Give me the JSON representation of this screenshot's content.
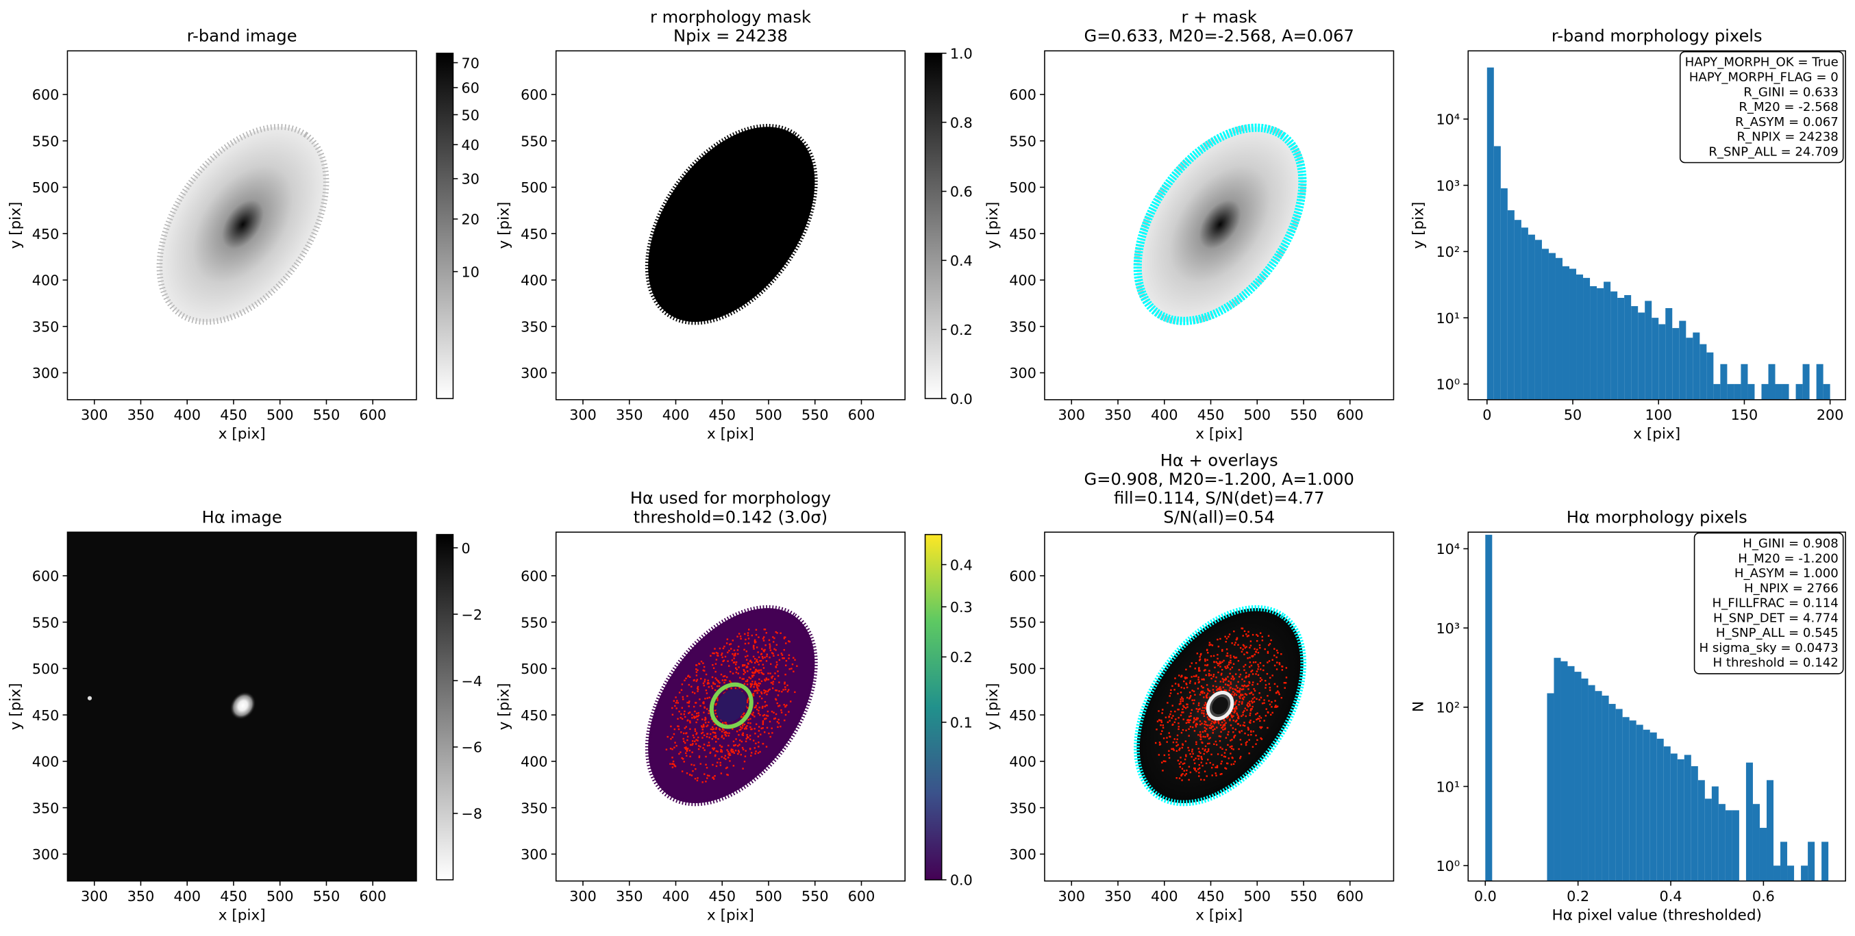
{
  "chart_data": [
    {
      "type": "image",
      "title": [
        "r-band image"
      ],
      "xlabel": "x [pix]",
      "ylabel": "y [pix]",
      "xlim": [
        271,
        647
      ],
      "ylim": [
        271,
        647
      ],
      "xticks": [
        300,
        350,
        400,
        450,
        500,
        550,
        600
      ],
      "yticks": [
        300,
        350,
        400,
        450,
        500,
        550,
        600
      ],
      "colorbar": {
        "cmap": "gray_r",
        "scale": "sqrt",
        "clim": [
          0,
          74
        ],
        "ticks": [
          10,
          20,
          30,
          40,
          50,
          60,
          70
        ]
      }
    },
    {
      "type": "image",
      "title": [
        "r morphology mask",
        "Npix = 24238"
      ],
      "xlabel": "x [pix]",
      "ylabel": "y [pix]",
      "xlim": [
        271,
        647
      ],
      "ylim": [
        271,
        647
      ],
      "xticks": [
        300,
        350,
        400,
        450,
        500,
        550,
        600
      ],
      "yticks": [
        300,
        350,
        400,
        450,
        500,
        550,
        600
      ],
      "colorbar": {
        "cmap": "gray_r",
        "scale": "linear",
        "clim": [
          0,
          1
        ],
        "ticks": [
          {
            "value": 0,
            "label": "0.0"
          },
          0.2,
          0.4,
          0.6,
          0.8,
          {
            "value": 1,
            "label": "1.0"
          }
        ]
      }
    },
    {
      "type": "image",
      "title": [
        "r + mask",
        "G=0.633, M20=-2.568, A=0.067"
      ],
      "xlabel": "x [pix]",
      "ylabel": "y [pix]",
      "xlim": [
        271,
        647
      ],
      "ylim": [
        271,
        647
      ],
      "xticks": [
        300,
        350,
        400,
        450,
        500,
        550,
        600
      ],
      "yticks": [
        300,
        350,
        400,
        450,
        500,
        550,
        600
      ]
    },
    {
      "type": "histogram",
      "title": [
        "r-band morphology pixels"
      ],
      "xlabel": "x [pix]",
      "ylabel": "y [pix]",
      "log_y": true,
      "color": "#1f77b4",
      "bins": [
        0,
        4,
        8,
        12,
        16,
        20,
        24,
        28,
        32,
        36,
        40,
        44,
        48,
        52,
        56,
        60,
        64,
        68,
        72,
        76,
        80,
        84,
        88,
        92,
        96,
        100,
        104,
        108,
        112,
        116,
        120,
        124,
        128,
        132,
        136,
        140,
        144,
        148,
        152,
        156,
        160,
        164,
        168,
        172,
        176,
        180,
        184,
        188,
        192,
        196,
        200
      ],
      "values": [
        60000,
        3900,
        900,
        420,
        300,
        230,
        180,
        150,
        110,
        95,
        80,
        60,
        55,
        45,
        40,
        30,
        28,
        35,
        25,
        20,
        22,
        15,
        12,
        18,
        10,
        8,
        14,
        7,
        9,
        5,
        6,
        4,
        3,
        1,
        2,
        1,
        1,
        2,
        1,
        0,
        1,
        2,
        1,
        1,
        0,
        1,
        2,
        0,
        2,
        1
      ],
      "xlim": [
        -11,
        209
      ],
      "ylim": [
        0.58,
        107000
      ],
      "xticks": [
        0,
        50,
        100,
        150,
        200
      ],
      "yticks": [
        {
          "value": 1,
          "label": "10⁰"
        },
        {
          "value": 10,
          "label": "10¹"
        },
        {
          "value": 100,
          "label": "10²"
        },
        {
          "value": 1000,
          "label": "10³"
        },
        {
          "value": 10000,
          "label": "10⁴"
        }
      ],
      "annotation": [
        "HAPY_MORPH_OK = True",
        "HAPY_MORPH_FLAG = 0",
        "R_GINI = 0.633",
        "R_M20 = -2.568",
        "R_ASYM = 0.067",
        "R_NPIX = 24238",
        "R_SNP_ALL = 24.709"
      ]
    },
    {
      "type": "image",
      "title": [
        "Hα image"
      ],
      "xlabel": "x [pix]",
      "ylabel": "y [pix]",
      "xlim": [
        271,
        647
      ],
      "ylim": [
        271,
        647
      ],
      "xticks": [
        300,
        350,
        400,
        450,
        500,
        550,
        600
      ],
      "yticks": [
        300,
        350,
        400,
        450,
        500,
        550,
        600
      ],
      "colorbar": {
        "cmap": "gray_r",
        "scale": "linear",
        "clim": [
          -10,
          0.4
        ],
        "ticks": [
          0,
          {
            "value": -2,
            "label": "−2"
          },
          {
            "value": -4,
            "label": "−4"
          },
          {
            "value": -6,
            "label": "−6"
          },
          {
            "value": -8,
            "label": "−8"
          }
        ]
      }
    },
    {
      "type": "image",
      "title": [
        "Hα used for morphology",
        "threshold=0.142 (3.0σ)"
      ],
      "xlabel": "x [pix]",
      "ylabel": "y [pix]",
      "xlim": [
        271,
        647
      ],
      "ylim": [
        271,
        647
      ],
      "xticks": [
        300,
        350,
        400,
        450,
        500,
        550,
        600
      ],
      "yticks": [
        300,
        350,
        400,
        450,
        500,
        550,
        600
      ],
      "colorbar": {
        "cmap": "viridis",
        "scale": "sqrt",
        "clim": [
          0,
          0.48
        ],
        "ticks": [
          {
            "value": 0,
            "label": "0.0"
          },
          0.1,
          0.2,
          0.3,
          0.4
        ]
      }
    },
    {
      "type": "image",
      "title": [
        "Hα + overlays",
        "G=0.908, M20=-1.200, A=1.000",
        "fill=0.114, S/N(det)=4.77",
        "S/N(all)=0.54"
      ],
      "xlabel": "x [pix]",
      "ylabel": "y [pix]",
      "xlim": [
        271,
        647
      ],
      "ylim": [
        271,
        647
      ],
      "xticks": [
        300,
        350,
        400,
        450,
        500,
        550,
        600
      ],
      "yticks": [
        300,
        350,
        400,
        450,
        500,
        550,
        600
      ]
    },
    {
      "type": "histogram",
      "title": [
        "Hα morphology pixels"
      ],
      "xlabel": "Hα pixel value (thresholded)",
      "ylabel": "N",
      "log_y": true,
      "color": "#1f77b4",
      "bins": [
        0,
        0.0148,
        0.0296,
        0.0444,
        0.0592,
        0.074,
        0.0888,
        0.1036,
        0.1184,
        0.1332,
        0.148,
        0.1628,
        0.1776,
        0.1924,
        0.2072,
        0.222,
        0.2368,
        0.2516,
        0.2664,
        0.2812,
        0.296,
        0.3108,
        0.3256,
        0.3404,
        0.3552,
        0.37,
        0.3848,
        0.3996,
        0.4144,
        0.4292,
        0.444,
        0.4588,
        0.4736,
        0.4884,
        0.5032,
        0.518,
        0.5328,
        0.5476,
        0.5624,
        0.5772,
        0.592,
        0.6068,
        0.6216,
        0.6364,
        0.6512,
        0.666,
        0.6808,
        0.6956,
        0.7104,
        0.7252,
        0.74
      ],
      "values": [
        15000,
        0,
        0,
        0,
        0,
        0,
        0,
        0,
        0,
        150,
        420,
        380,
        330,
        280,
        230,
        190,
        160,
        140,
        110,
        95,
        75,
        68,
        60,
        52,
        48,
        40,
        32,
        26,
        22,
        25,
        18,
        12,
        7,
        10,
        6,
        5,
        5,
        0,
        20,
        6,
        3,
        12,
        1,
        2,
        1,
        0,
        1,
        2,
        0,
        2
      ],
      "xlim": [
        -0.037,
        0.777
      ],
      "ylim": [
        0.64,
        16200
      ],
      "xticks": [
        {
          "value": 0,
          "label": "0.0"
        },
        0.2,
        0.4,
        0.6
      ],
      "yticks": [
        {
          "value": 1,
          "label": "10⁰"
        },
        {
          "value": 10,
          "label": "10¹"
        },
        {
          "value": 100,
          "label": "10²"
        },
        {
          "value": 1000,
          "label": "10³"
        },
        {
          "value": 10000,
          "label": "10⁴"
        }
      ],
      "annotation": [
        "H_GINI = 0.908",
        "H_M20 = -1.200",
        "H_ASYM = 1.000",
        "H_NPIX = 2766",
        "H_FILLFRAC = 0.114",
        "H_SNP_DET = 4.774",
        "H_SNP_ALL = 0.545",
        "H sigma_sky = 0.0473",
        "H threshold = 0.142"
      ]
    }
  ]
}
